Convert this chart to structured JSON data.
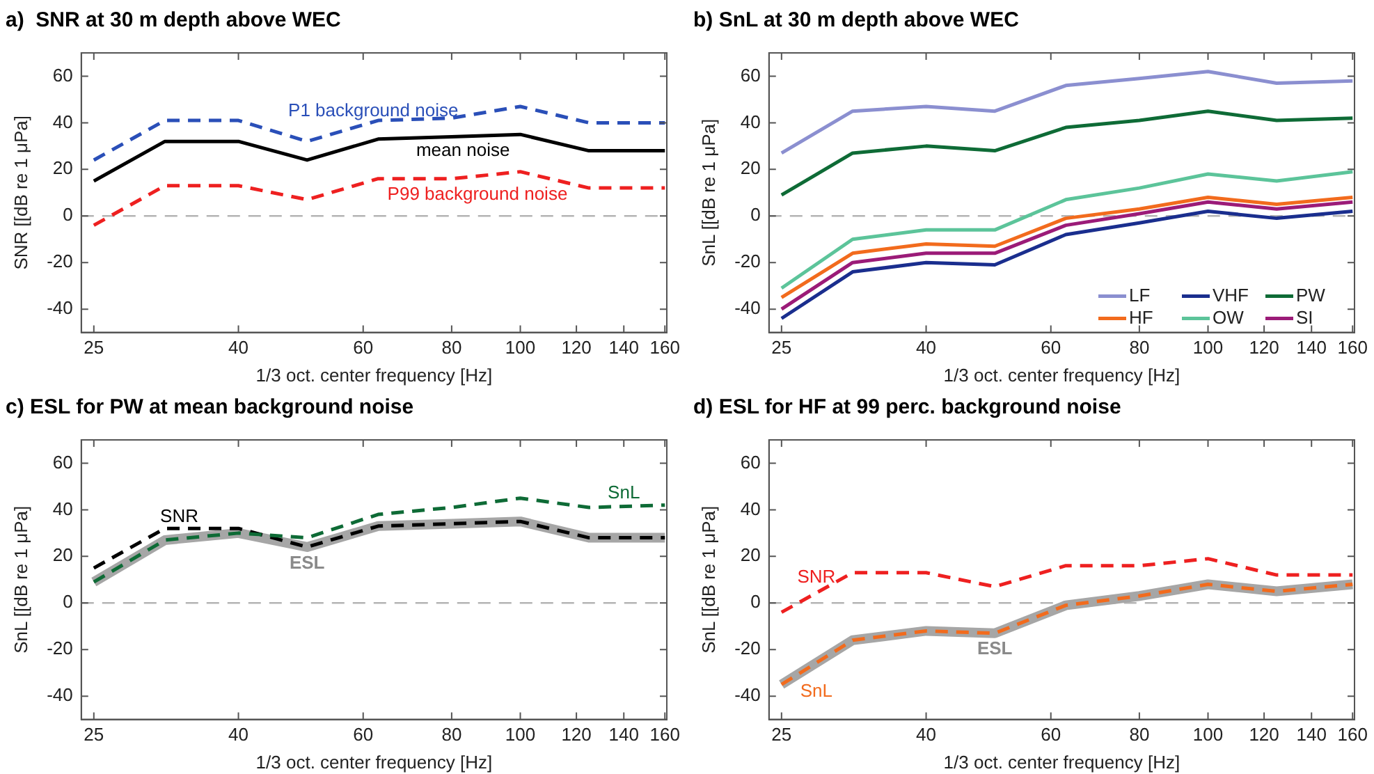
{
  "chart_data": [
    {
      "type": "line",
      "title": "a)  SNR at 30 m depth above WEC",
      "xlabel": "1/3 oct. center frequency [Hz]",
      "ylabel": "SNR [[dB re 1 μPa]",
      "log": "x",
      "grid": false,
      "legend": false,
      "marker": "none",
      "x": [
        25,
        31.5,
        40,
        50,
        63,
        80,
        100,
        125,
        160
      ],
      "xlim": [
        24,
        161
      ],
      "xticks": [
        25,
        40,
        60,
        80,
        100,
        120,
        140,
        160
      ],
      "ylim": [
        -50,
        70
      ],
      "yticks": [
        -40,
        -20,
        0,
        20,
        40,
        60
      ],
      "ref_lines": [
        {
          "axis": "y",
          "value": 0,
          "color": "#b4b4b4",
          "line_style": "dashed"
        }
      ],
      "series": [
        {
          "name": "P1 background noise",
          "color": "#2a4fb8",
          "line_style": "dashed",
          "values": [
            24,
            41,
            41,
            32,
            41,
            42,
            47,
            40,
            40
          ]
        },
        {
          "name": "mean noise",
          "color": "#000000",
          "line_style": "solid",
          "values": [
            15,
            32,
            32,
            24,
            33,
            34,
            35,
            28,
            28
          ]
        },
        {
          "name": "P99 background noise",
          "color": "#ee2020",
          "line_style": "dashed",
          "values": [
            -4,
            13,
            13,
            7,
            16,
            16,
            19,
            12,
            12
          ]
        }
      ]
    },
    {
      "type": "line",
      "title": "b) SnL at 30 m depth above WEC",
      "xlabel": "1/3 oct. center frequency [Hz]",
      "ylabel": "SnL [[dB re 1 μPa]",
      "log": "x",
      "grid": false,
      "legend": "bottom right",
      "marker": "none",
      "x": [
        25,
        31.5,
        40,
        50,
        63,
        80,
        100,
        125,
        160
      ],
      "xlim": [
        24,
        161
      ],
      "xticks": [
        25,
        40,
        60,
        80,
        100,
        120,
        140,
        160
      ],
      "ylim": [
        -50,
        70
      ],
      "yticks": [
        -40,
        -20,
        0,
        20,
        40,
        60
      ],
      "ref_lines": [
        {
          "axis": "y",
          "value": 0,
          "color": "#b4b4b4",
          "line_style": "dashed"
        }
      ],
      "series": [
        {
          "name": "LF",
          "color": "#8b8fd0",
          "line_style": "solid",
          "values": [
            27,
            45,
            47,
            45,
            56,
            59,
            62,
            57,
            58
          ]
        },
        {
          "name": "HF",
          "color": "#f26b1d",
          "line_style": "solid",
          "values": [
            -35,
            -16,
            -12,
            -13,
            -1,
            3,
            8,
            5,
            8
          ]
        },
        {
          "name": "VHF",
          "color": "#1a2e8e",
          "line_style": "solid",
          "values": [
            -44,
            -24,
            -20,
            -21,
            -8,
            -3,
            2,
            -1,
            2
          ]
        },
        {
          "name": "OW",
          "color": "#5cc49a",
          "line_style": "solid",
          "values": [
            -31,
            -10,
            -6,
            -6,
            7,
            12,
            18,
            15,
            19
          ]
        },
        {
          "name": "PW",
          "color": "#0e6b36",
          "line_style": "solid",
          "values": [
            9,
            27,
            30,
            28,
            38,
            41,
            45,
            41,
            42
          ]
        },
        {
          "name": "SI",
          "color": "#9b1b78",
          "line_style": "solid",
          "values": [
            -40,
            -20,
            -16,
            -16,
            -4,
            1,
            6,
            3,
            6
          ]
        }
      ]
    },
    {
      "type": "line",
      "title": "c) ESL for PW at mean background noise",
      "xlabel": "1/3 oct. center frequency [Hz]",
      "ylabel": "SnL [[dB re 1 μPa]",
      "log": "x",
      "grid": false,
      "legend": false,
      "marker": "none",
      "x": [
        25,
        31.5,
        40,
        50,
        63,
        80,
        100,
        125,
        160
      ],
      "xlim": [
        24,
        161
      ],
      "xticks": [
        25,
        40,
        60,
        80,
        100,
        120,
        140,
        160
      ],
      "ylim": [
        -50,
        70
      ],
      "yticks": [
        -40,
        -20,
        0,
        20,
        40,
        60
      ],
      "ref_lines": [
        {
          "axis": "y",
          "value": 0,
          "color": "#b4b4b4",
          "line_style": "dashed"
        }
      ],
      "series": [
        {
          "name": "ESL",
          "color": "#a6a6a6",
          "line_style": "solid",
          "values": [
            9,
            27,
            30,
            24,
            33,
            34,
            35,
            28,
            28
          ]
        },
        {
          "name": "SNR",
          "color": "#000000",
          "line_style": "dashed",
          "values": [
            15,
            32,
            32,
            24,
            33,
            34,
            35,
            28,
            28
          ]
        },
        {
          "name": "SnL",
          "color": "#0e6b36",
          "line_style": "dashed",
          "values": [
            9,
            27,
            30,
            28,
            38,
            41,
            45,
            41,
            42
          ]
        }
      ]
    },
    {
      "type": "line",
      "title": "d) ESL for HF at 99 perc. background noise",
      "xlabel": "1/3 oct. center frequency [Hz]",
      "ylabel": "SnL [[dB re 1 μPa]",
      "log": "x",
      "grid": false,
      "legend": false,
      "marker": "none",
      "x": [
        25,
        31.5,
        40,
        50,
        63,
        80,
        100,
        125,
        160
      ],
      "xlim": [
        24,
        161
      ],
      "xticks": [
        25,
        40,
        60,
        80,
        100,
        120,
        140,
        160
      ],
      "ylim": [
        -50,
        70
      ],
      "yticks": [
        -40,
        -20,
        0,
        20,
        40,
        60
      ],
      "ref_lines": [
        {
          "axis": "y",
          "value": 0,
          "color": "#b4b4b4",
          "line_style": "dashed"
        }
      ],
      "series": [
        {
          "name": "ESL",
          "color": "#a6a6a6",
          "line_style": "solid",
          "values": [
            -35,
            -16,
            -12,
            -13,
            -1,
            3,
            8,
            5,
            8
          ]
        },
        {
          "name": "SNR",
          "color": "#ee2020",
          "line_style": "dashed",
          "values": [
            -4,
            13,
            13,
            7,
            16,
            16,
            19,
            12,
            12
          ]
        },
        {
          "name": "SnL",
          "color": "#f26b1d",
          "line_style": "dashed",
          "values": [
            -35,
            -16,
            -12,
            -13,
            -1,
            3,
            8,
            5,
            8
          ]
        }
      ]
    }
  ]
}
